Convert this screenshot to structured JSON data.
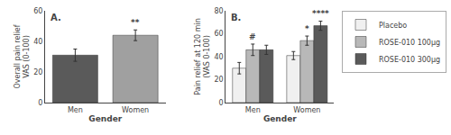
{
  "chart_data": [
    {
      "type": "bar",
      "title": "A.",
      "categories": [
        "Men",
        "Women"
      ],
      "values": [
        31,
        44
      ],
      "errors": [
        4,
        3.5
      ],
      "colors": [
        "#5a5a5a",
        "#a0a0a0"
      ],
      "xlabel": "Gender",
      "ylabel": "Overall pain relief\nVAS (0-100)",
      "ylim": [
        0,
        60
      ],
      "yticks": [
        0,
        20,
        40,
        60
      ],
      "grid": false,
      "annotations": [
        {
          "text": "**",
          "category": "Women"
        }
      ]
    },
    {
      "type": "bar",
      "title": "B.",
      "categories": [
        "Men",
        "Women"
      ],
      "series": [
        {
          "name": "Placebo",
          "color": "#f0f0f0",
          "values": [
            30,
            41
          ],
          "errors": [
            5,
            3.5
          ]
        },
        {
          "name": "ROSE-010 100μg",
          "color": "#b8b8b8",
          "values": [
            46,
            54
          ],
          "errors": [
            5,
            4
          ]
        },
        {
          "name": "ROSE-010 300μg",
          "color": "#5a5a5a",
          "values": [
            46,
            67
          ],
          "errors": [
            4,
            4
          ]
        }
      ],
      "xlabel": "Gender",
      "ylabel": "Pain relief at 120 min\n(VAS 0-100)",
      "ylim": [
        0,
        80
      ],
      "yticks": [
        0,
        20,
        40,
        60,
        80
      ],
      "grid": false,
      "legend": "upper right",
      "annotations": [
        {
          "text": "#",
          "category": "Men",
          "series": "ROSE-010 100μg"
        },
        {
          "text": "*",
          "category": "Women",
          "series": "ROSE-010 100μg"
        },
        {
          "text": "****",
          "category": "Women",
          "series": "ROSE-010 300μg"
        }
      ]
    }
  ]
}
